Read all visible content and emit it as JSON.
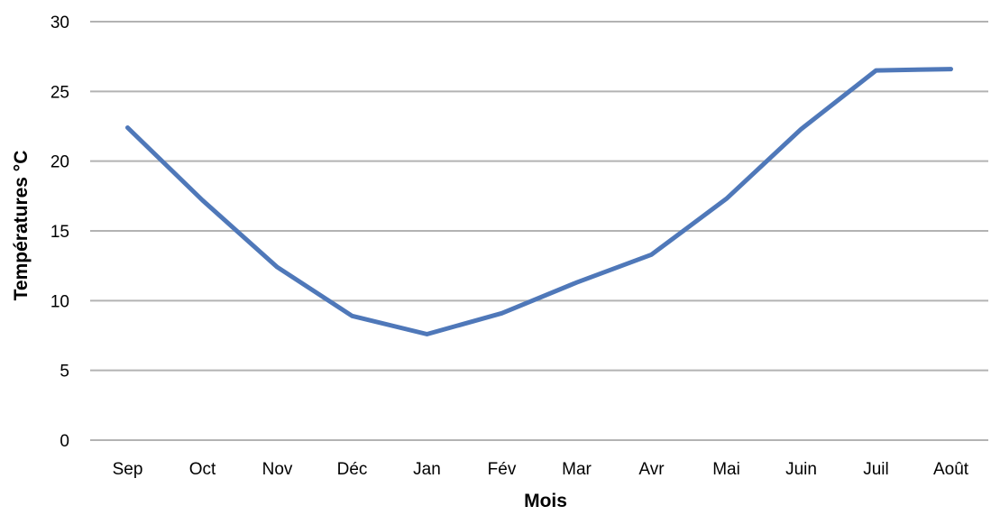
{
  "chart_data": {
    "type": "line",
    "categories": [
      "Sep",
      "Oct",
      "Nov",
      "Déc",
      "Jan",
      "Fév",
      "Mar",
      "Avr",
      "Mai",
      "Juin",
      "Juil",
      "Août"
    ],
    "series": [
      {
        "values": [
          22.4,
          17.2,
          12.4,
          8.9,
          7.6,
          9.1,
          11.3,
          13.3,
          17.3,
          22.3,
          26.5,
          26.6
        ],
        "color": "#4f78b9"
      }
    ],
    "title": "",
    "xlabel": "Mois",
    "ylabel": "Températures °C",
    "ylim": [
      0,
      30
    ],
    "yticks": [
      "0",
      "5",
      "10",
      "15",
      "20",
      "25",
      "30"
    ],
    "grid": true,
    "legend": "none"
  }
}
